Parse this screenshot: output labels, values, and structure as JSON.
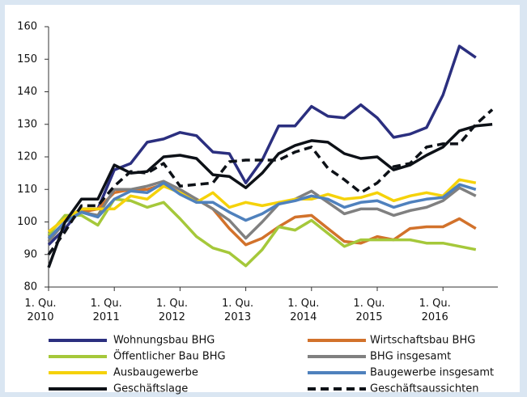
{
  "chart_data": {
    "type": "line",
    "categories": [
      "1. Qu.\n2010",
      null,
      null,
      null,
      "1. Qu.\n2011",
      null,
      null,
      null,
      "1. Qu.\n2012",
      null,
      null,
      null,
      "1. Qu.\n2013",
      null,
      null,
      null,
      "1. Qu.\n2014",
      null,
      null,
      null,
      "1. Qu.\n2015",
      null,
      null,
      null,
      "1. Qu.\n2016",
      null,
      null,
      null
    ],
    "ylim": [
      80,
      160
    ],
    "yticks": [
      80,
      90,
      100,
      110,
      120,
      130,
      140,
      150,
      160
    ],
    "grid": false,
    "series": [
      {
        "name": "Wohnungsbau BHG",
        "color": "#2b2f7f",
        "values": [
          93,
          98,
          104,
          104,
          116,
          118,
          124.5,
          125.5,
          127.5,
          126.5,
          121.5,
          121,
          112,
          119,
          129.5,
          129.5,
          135.5,
          132.5,
          132,
          136,
          132,
          126,
          127,
          129,
          139,
          154,
          150.5,
          null
        ]
      },
      {
        "name": "Wirtschaftsbau BHG",
        "color": "#d2722b",
        "values": [
          95,
          100,
          103,
          104,
          109,
          110,
          110,
          111.5,
          109,
          107,
          104,
          98,
          93,
          95,
          98.5,
          101.5,
          102,
          98,
          94,
          93.5,
          95.5,
          94.5,
          98,
          98.5,
          98.5,
          101,
          98,
          null
        ]
      },
      {
        "name": "Öffentlicher Bau BHG",
        "color": "#a5c83a",
        "values": [
          96,
          102,
          102,
          99,
          107,
          106.5,
          104.5,
          106,
          101,
          95.5,
          92,
          90.5,
          86.5,
          91.5,
          98.5,
          97.5,
          100.5,
          96.5,
          92.5,
          94.5,
          94.5,
          94.5,
          94.5,
          93.5,
          93.5,
          92.5,
          91.5,
          null
        ]
      },
      {
        "name": "BHG insgesamt",
        "color": "#808080",
        "values": [
          94,
          100,
          103,
          102,
          110,
          110,
          111,
          112.5,
          110,
          107,
          104,
          100.5,
          95,
          100,
          105.5,
          107,
          109.5,
          106,
          102.5,
          104,
          104,
          102,
          103.5,
          104.5,
          106.5,
          110.5,
          108,
          null
        ]
      },
      {
        "name": "Ausbaugewerbe",
        "color": "#f5d20a",
        "values": [
          97,
          101,
          104,
          104,
          104,
          108,
          107,
          111,
          109,
          106,
          109,
          104.5,
          106,
          105,
          106,
          107,
          107,
          108.5,
          107,
          107.5,
          109,
          106.5,
          108,
          109,
          108,
          113,
          112,
          null
        ]
      },
      {
        "name": "Baugewerbe insgesamt",
        "color": "#4f81bd",
        "values": [
          95,
          100,
          103,
          101.5,
          107,
          109.5,
          109,
          112,
          108.5,
          106,
          106,
          103,
          100.5,
          102.5,
          105.5,
          106.5,
          108,
          107,
          104.5,
          106,
          106.5,
          104.5,
          106,
          107,
          107.5,
          111.5,
          110,
          null
        ]
      },
      {
        "name": "Geschäftslage",
        "color": "#0d1117",
        "values": [
          86,
          100,
          107,
          107,
          117.5,
          115,
          115.5,
          120,
          120.5,
          119.5,
          114.5,
          114,
          110.5,
          115,
          121,
          123.5,
          125,
          124.5,
          121,
          119.5,
          120,
          116,
          117.5,
          120.5,
          123,
          128,
          129.5,
          130
        ]
      },
      {
        "name": "Geschäftsaussichten",
        "color": "#0d1117",
        "dashed": true,
        "values": [
          90,
          97,
          105,
          105,
          111,
          115.5,
          115,
          118,
          111,
          111.5,
          112,
          118.5,
          119,
          119,
          119,
          121.5,
          123,
          116.5,
          113,
          109,
          112,
          117,
          118,
          123,
          124,
          124,
          130,
          134.5
        ]
      }
    ]
  }
}
